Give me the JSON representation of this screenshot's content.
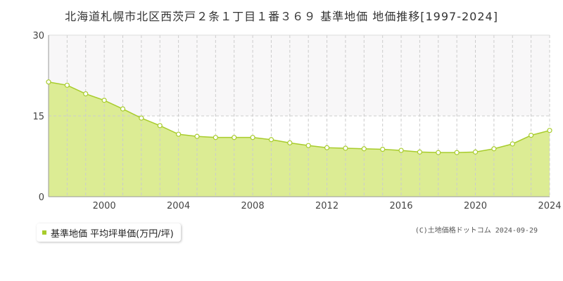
{
  "title": "北海道札幌市北区西茨戸２条１丁目１番３６９ 基準地価 地価推移[1997-2024]",
  "legend_label": "基準地価 平均坪単価(万円/坪)",
  "credit": "(C)土地価格ドットコム 2024-09-29",
  "colors": {
    "fill": "#dcec94",
    "line": "#a8cc2c",
    "marker_fill": "#ffffff",
    "grid": "#cccccc",
    "band": "#f8f7f8"
  },
  "chart_data": {
    "type": "area",
    "x": [
      1997,
      1998,
      1999,
      2000,
      2001,
      2002,
      2003,
      2004,
      2005,
      2006,
      2007,
      2008,
      2009,
      2010,
      2011,
      2012,
      2013,
      2014,
      2015,
      2016,
      2017,
      2018,
      2019,
      2020,
      2021,
      2022,
      2023,
      2024
    ],
    "series": [
      {
        "values": [
          21.3,
          20.7,
          19.1,
          17.9,
          16.3,
          14.6,
          13.2,
          11.6,
          11.2,
          11.0,
          11.0,
          11.0,
          10.6,
          10.0,
          9.5,
          9.1,
          9.0,
          8.9,
          8.8,
          8.6,
          8.3,
          8.2,
          8.2,
          8.3,
          8.9,
          9.8,
          11.4,
          12.3
        ]
      }
    ],
    "xlim": [
      1997,
      2024
    ],
    "ylim": [
      0,
      30
    ],
    "y_ticks": [
      0,
      15,
      30
    ],
    "x_tick_labels": [
      2000,
      2004,
      2008,
      2012,
      2016,
      2020,
      2024
    ],
    "grid": true
  }
}
